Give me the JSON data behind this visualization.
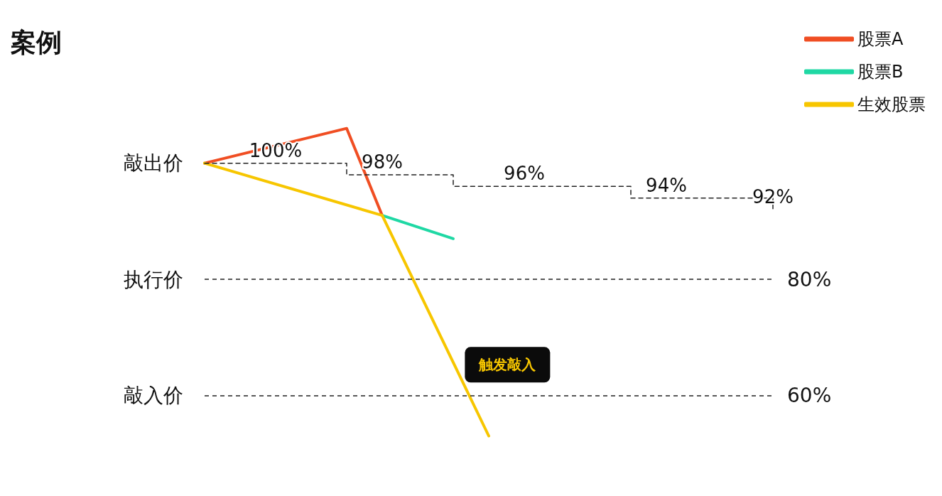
{
  "chart_data": {
    "type": "line",
    "title": "案例",
    "categories": [
      null,
      null,
      null,
      null,
      null,
      null,
      null,
      null,
      null,
      null,
      null,
      null,
      null,
      null,
      null,
      null,
      null
    ],
    "series": [
      {
        "name": "股票A",
        "color": "#f04e23",
        "values": [
          100,
          null,
          null,
          null,
          106,
          91,
          null,
          null,
          null,
          null,
          null,
          null,
          null,
          null,
          null,
          null,
          null
        ]
      },
      {
        "name": "股票B",
        "color": "#1fd8a4",
        "values": [
          null,
          null,
          null,
          null,
          null,
          91,
          null,
          87,
          null,
          null,
          null,
          null,
          null,
          null,
          null,
          null,
          null
        ]
      },
      {
        "name": "生效股票",
        "color": "#f7c600",
        "values": [
          100,
          null,
          null,
          null,
          null,
          91,
          null,
          null,
          53,
          null,
          null,
          null,
          null,
          null,
          null,
          null,
          null
        ]
      },
      {
        "type": "step",
        "color": "#222222",
        "line_style": "dashed",
        "values": [
          100,
          100,
          100,
          100,
          98,
          98,
          98,
          96,
          96,
          96,
          96,
          96,
          94,
          94,
          94,
          94,
          92
        ],
        "value_labels": [
          null,
          null,
          "100%",
          null,
          null,
          "98%",
          null,
          null,
          null,
          "96%",
          null,
          null,
          null,
          "94%",
          null,
          null,
          "92%"
        ]
      }
    ],
    "ref_lines": [
      {
        "axis": "y",
        "value": 80,
        "label": "80%",
        "color": "#222222",
        "line_style": "dashed"
      },
      {
        "axis": "y",
        "value": 60,
        "label": "60%",
        "color": "#222222",
        "line_style": "dashed"
      }
    ],
    "annotations": [
      "敲出价",
      "执行价",
      "敲入价",
      "触发敲入"
    ],
    "grid": false,
    "legend": "top right",
    "marker": "none"
  }
}
